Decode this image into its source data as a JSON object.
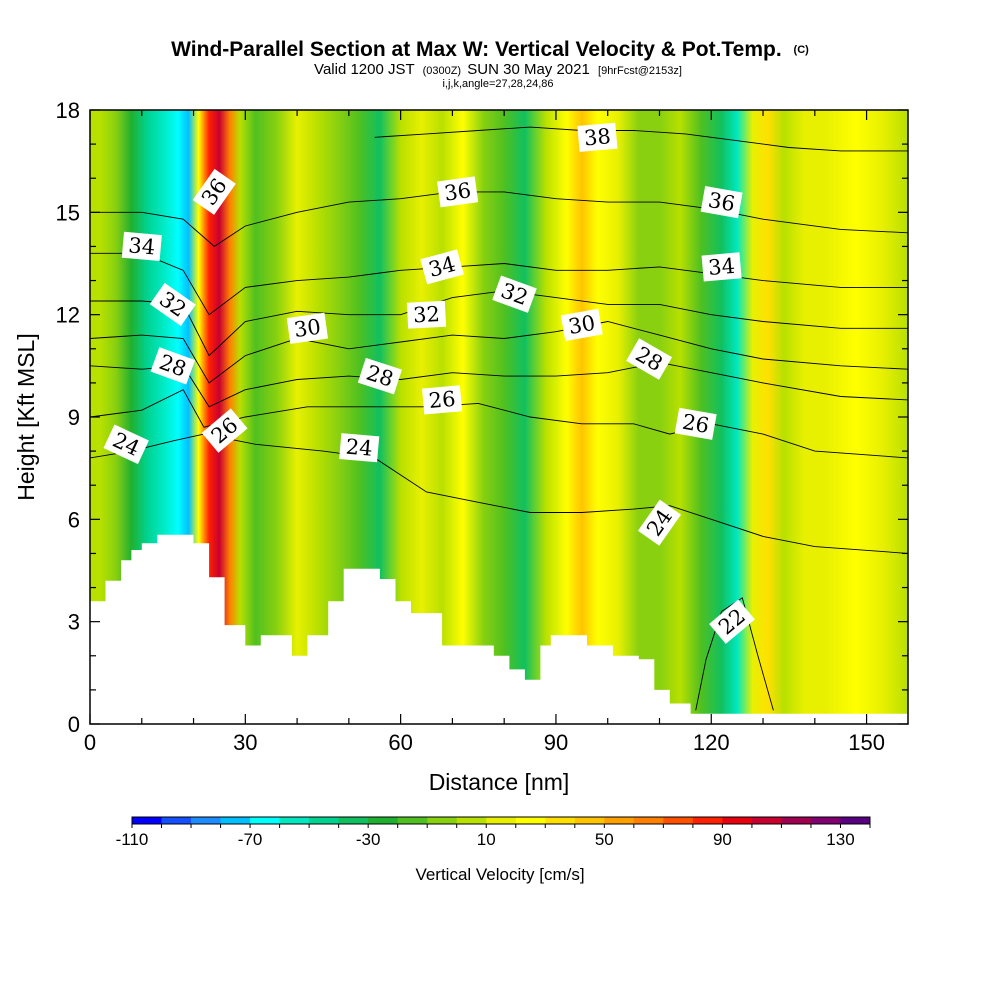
{
  "chart_data": {
    "type": "heatmap",
    "title": "Wind-Parallel Section at Max W: Vertical Velocity & Pot.Temp.",
    "title_mark": "(C)",
    "subtitle": {
      "a": "Valid 1200 JST",
      "b": "(0300Z)",
      "c": "SUN 30 May 2021",
      "d": "[9hrFcst@2153z]"
    },
    "subtitle2": "i,j,k,angle=27,28,24,86",
    "xlabel": "Distance [nm]",
    "ylabel": "Height [Kft MSL]",
    "xlim": [
      0,
      158
    ],
    "ylim": [
      0,
      18
    ],
    "xticks": [
      "0",
      "30",
      "60",
      "90",
      "120",
      "150"
    ],
    "yticks": [
      "0",
      "3",
      "6",
      "9",
      "12",
      "15",
      "18"
    ],
    "colorbar": {
      "label": "Vertical Velocity [cm/s]",
      "range": [
        -110,
        140
      ],
      "step": 10,
      "tick_labels": [
        "-110",
        "-70",
        "-30",
        "10",
        "50",
        "90",
        "130"
      ],
      "colors": [
        "#0000ff",
        "#1450ff",
        "#1e8cff",
        "#00bfff",
        "#00ffff",
        "#00e8c0",
        "#00d290",
        "#10c060",
        "#20b030",
        "#50c020",
        "#88d010",
        "#b8e000",
        "#e8f000",
        "#ffff00",
        "#ffe000",
        "#ffc400",
        "#ffa000",
        "#ff8000",
        "#ff5000",
        "#ff2000",
        "#e80010",
        "#c80030",
        "#a00050",
        "#800070",
        "#58007f"
      ]
    },
    "velocity_bands": [
      {
        "x": 0,
        "w": 0
      },
      {
        "x": 2,
        "w": 5
      },
      {
        "x": 5,
        "w": -10
      },
      {
        "x": 8,
        "w": -30
      },
      {
        "x": 11,
        "w": -45
      },
      {
        "x": 14,
        "w": -55
      },
      {
        "x": 17,
        "w": -70
      },
      {
        "x": 19,
        "w": -80
      },
      {
        "x": 21,
        "w": 20
      },
      {
        "x": 23,
        "w": 85
      },
      {
        "x": 25,
        "w": 100
      },
      {
        "x": 27,
        "w": 60
      },
      {
        "x": 29,
        "w": 5
      },
      {
        "x": 32,
        "w": -20
      },
      {
        "x": 36,
        "w": -5
      },
      {
        "x": 40,
        "w": 15
      },
      {
        "x": 44,
        "w": 0
      },
      {
        "x": 48,
        "w": -10
      },
      {
        "x": 52,
        "w": -20
      },
      {
        "x": 56,
        "w": -35
      },
      {
        "x": 60,
        "w": 0
      },
      {
        "x": 64,
        "w": 15
      },
      {
        "x": 68,
        "w": 5
      },
      {
        "x": 72,
        "w": 25
      },
      {
        "x": 76,
        "w": -5
      },
      {
        "x": 80,
        "w": -15
      },
      {
        "x": 84,
        "w": -40
      },
      {
        "x": 88,
        "w": 0
      },
      {
        "x": 92,
        "w": 20
      },
      {
        "x": 95,
        "w": 40
      },
      {
        "x": 98,
        "w": 25
      },
      {
        "x": 102,
        "w": 15
      },
      {
        "x": 106,
        "w": -5
      },
      {
        "x": 110,
        "w": -10
      },
      {
        "x": 114,
        "w": 0
      },
      {
        "x": 118,
        "w": -15
      },
      {
        "x": 122,
        "w": -40
      },
      {
        "x": 125,
        "w": -60
      },
      {
        "x": 128,
        "w": 10
      },
      {
        "x": 131,
        "w": 30
      },
      {
        "x": 134,
        "w": 5
      },
      {
        "x": 138,
        "w": 10
      },
      {
        "x": 142,
        "w": 15
      },
      {
        "x": 148,
        "w": 20
      },
      {
        "x": 153,
        "w": 10
      },
      {
        "x": 158,
        "w": 5
      }
    ],
    "terrain": [
      [
        0,
        3.6
      ],
      [
        3,
        4.2
      ],
      [
        6,
        4.8
      ],
      [
        8,
        5.1
      ],
      [
        10,
        5.3
      ],
      [
        13,
        5.55
      ],
      [
        20,
        5.3
      ],
      [
        23,
        4.3
      ],
      [
        26,
        2.9
      ],
      [
        30,
        2.3
      ],
      [
        33,
        2.6
      ],
      [
        39,
        2.0
      ],
      [
        42,
        2.6
      ],
      [
        46,
        3.6
      ],
      [
        49,
        4.55
      ],
      [
        56,
        4.25
      ],
      [
        59,
        3.6
      ],
      [
        62,
        3.25
      ],
      [
        68,
        2.3
      ],
      [
        78,
        2.0
      ],
      [
        81,
        1.6
      ],
      [
        84,
        1.3
      ],
      [
        87,
        2.3
      ],
      [
        89,
        2.6
      ],
      [
        96,
        2.3
      ],
      [
        101,
        2.0
      ],
      [
        106,
        1.9
      ],
      [
        109,
        1.0
      ],
      [
        112,
        0.6
      ],
      [
        116,
        0.3
      ],
      [
        122,
        0.3
      ],
      [
        158,
        0.3
      ]
    ],
    "isentropes": [
      {
        "value": 22,
        "points": [
          [
            117,
            0.4
          ],
          [
            119,
            1.9
          ],
          [
            122,
            3.3
          ],
          [
            126,
            3.7
          ],
          [
            129,
            2.0
          ],
          [
            132,
            0.4
          ]
        ]
      },
      {
        "value": 24,
        "points": [
          [
            0,
            7.8
          ],
          [
            8,
            8.0
          ],
          [
            16,
            8.3
          ],
          [
            22,
            8.5
          ],
          [
            32,
            8.2
          ],
          [
            45,
            8.0
          ],
          [
            55,
            7.8
          ],
          [
            65,
            6.8
          ],
          [
            75,
            6.5
          ],
          [
            85,
            6.2
          ],
          [
            95,
            6.2
          ],
          [
            105,
            6.3
          ],
          [
            112,
            6.4
          ],
          [
            120,
            6.0
          ],
          [
            130,
            5.5
          ],
          [
            140,
            5.2
          ],
          [
            158,
            5.0
          ]
        ]
      },
      {
        "value": 26,
        "points": [
          [
            0,
            9.0
          ],
          [
            10,
            9.2
          ],
          [
            18,
            9.8
          ],
          [
            22,
            8.7
          ],
          [
            30,
            9.0
          ],
          [
            42,
            9.3
          ],
          [
            55,
            9.3
          ],
          [
            65,
            9.3
          ],
          [
            75,
            9.4
          ],
          [
            85,
            9.0
          ],
          [
            95,
            8.8
          ],
          [
            105,
            8.8
          ],
          [
            112,
            8.5
          ],
          [
            120,
            8.8
          ],
          [
            130,
            8.5
          ],
          [
            140,
            8.0
          ],
          [
            158,
            7.8
          ]
        ]
      },
      {
        "value": 28,
        "points": [
          [
            0,
            10.5
          ],
          [
            10,
            10.4
          ],
          [
            18,
            10.5
          ],
          [
            23,
            9.3
          ],
          [
            30,
            9.8
          ],
          [
            40,
            10.1
          ],
          [
            50,
            10.2
          ],
          [
            60,
            10.1
          ],
          [
            70,
            10.3
          ],
          [
            80,
            10.2
          ],
          [
            90,
            10.2
          ],
          [
            100,
            10.3
          ],
          [
            110,
            10.6
          ],
          [
            120,
            10.3
          ],
          [
            130,
            10.0
          ],
          [
            145,
            9.6
          ],
          [
            158,
            9.5
          ]
        ]
      },
      {
        "value": 30,
        "points": [
          [
            0,
            11.3
          ],
          [
            10,
            11.4
          ],
          [
            18,
            11.3
          ],
          [
            23,
            10.0
          ],
          [
            30,
            10.8
          ],
          [
            40,
            11.3
          ],
          [
            50,
            11.0
          ],
          [
            60,
            11.2
          ],
          [
            70,
            11.4
          ],
          [
            80,
            11.3
          ],
          [
            90,
            11.5
          ],
          [
            100,
            11.8
          ],
          [
            110,
            11.4
          ],
          [
            120,
            11.0
          ],
          [
            130,
            10.7
          ],
          [
            145,
            10.5
          ],
          [
            158,
            10.4
          ]
        ]
      },
      {
        "value": 32,
        "points": [
          [
            0,
            12.4
          ],
          [
            10,
            12.4
          ],
          [
            18,
            12.3
          ],
          [
            23,
            10.8
          ],
          [
            30,
            11.8
          ],
          [
            40,
            12.1
          ],
          [
            50,
            12.0
          ],
          [
            60,
            12.0
          ],
          [
            70,
            12.5
          ],
          [
            80,
            12.7
          ],
          [
            90,
            12.5
          ],
          [
            100,
            12.3
          ],
          [
            110,
            12.3
          ],
          [
            120,
            12.0
          ],
          [
            130,
            11.8
          ],
          [
            145,
            11.6
          ],
          [
            158,
            11.6
          ]
        ]
      },
      {
        "value": 34,
        "points": [
          [
            0,
            13.8
          ],
          [
            10,
            13.8
          ],
          [
            18,
            13.3
          ],
          [
            23,
            12.0
          ],
          [
            30,
            12.8
          ],
          [
            40,
            13.0
          ],
          [
            50,
            13.1
          ],
          [
            60,
            13.3
          ],
          [
            70,
            13.4
          ],
          [
            80,
            13.5
          ],
          [
            90,
            13.3
          ],
          [
            100,
            13.3
          ],
          [
            110,
            13.4
          ],
          [
            120,
            13.2
          ],
          [
            130,
            13.0
          ],
          [
            145,
            12.8
          ],
          [
            158,
            12.8
          ]
        ]
      },
      {
        "value": 36,
        "points": [
          [
            0,
            15.0
          ],
          [
            10,
            15.0
          ],
          [
            18,
            14.8
          ],
          [
            24,
            14.0
          ],
          [
            30,
            14.6
          ],
          [
            40,
            15.0
          ],
          [
            50,
            15.3
          ],
          [
            60,
            15.4
          ],
          [
            70,
            15.6
          ],
          [
            80,
            15.6
          ],
          [
            90,
            15.4
          ],
          [
            100,
            15.3
          ],
          [
            110,
            15.3
          ],
          [
            120,
            15.1
          ],
          [
            130,
            14.8
          ],
          [
            145,
            14.5
          ],
          [
            158,
            14.4
          ]
        ]
      },
      {
        "value": 38,
        "points": [
          [
            55,
            17.2
          ],
          [
            65,
            17.3
          ],
          [
            75,
            17.4
          ],
          [
            85,
            17.5
          ],
          [
            95,
            17.4
          ],
          [
            105,
            17.4
          ],
          [
            115,
            17.3
          ],
          [
            125,
            17.1
          ],
          [
            135,
            16.9
          ],
          [
            145,
            16.8
          ],
          [
            158,
            16.8
          ]
        ]
      }
    ],
    "contour_labels": [
      {
        "text": "38",
        "x": 98,
        "y": 17.2,
        "rot": -5
      },
      {
        "text": "36",
        "x": 24,
        "y": 15.6,
        "rot": -55
      },
      {
        "text": "36",
        "x": 71,
        "y": 15.6,
        "rot": -8
      },
      {
        "text": "36",
        "x": 122,
        "y": 15.3,
        "rot": 10
      },
      {
        "text": "34",
        "x": 10,
        "y": 14.0,
        "rot": 5
      },
      {
        "text": "34",
        "x": 68,
        "y": 13.4,
        "rot": -15
      },
      {
        "text": "34",
        "x": 122,
        "y": 13.4,
        "rot": -5
      },
      {
        "text": "32",
        "x": 16,
        "y": 12.3,
        "rot": 35
      },
      {
        "text": "32",
        "x": 65,
        "y": 12.0,
        "rot": -3
      },
      {
        "text": "32",
        "x": 82,
        "y": 12.6,
        "rot": 20
      },
      {
        "text": "30",
        "x": 42,
        "y": 11.6,
        "rot": -8
      },
      {
        "text": "30",
        "x": 95,
        "y": 11.7,
        "rot": -10
      },
      {
        "text": "28",
        "x": 16,
        "y": 10.5,
        "rot": 20
      },
      {
        "text": "28",
        "x": 56,
        "y": 10.2,
        "rot": 18
      },
      {
        "text": "28",
        "x": 108,
        "y": 10.7,
        "rot": 30
      },
      {
        "text": "26",
        "x": 26,
        "y": 8.6,
        "rot": -40
      },
      {
        "text": "26",
        "x": 68,
        "y": 9.5,
        "rot": -5
      },
      {
        "text": "26",
        "x": 117,
        "y": 8.8,
        "rot": 10
      },
      {
        "text": "24",
        "x": 7,
        "y": 8.2,
        "rot": 25
      },
      {
        "text": "24",
        "x": 52,
        "y": 8.1,
        "rot": 5
      },
      {
        "text": "24",
        "x": 110,
        "y": 5.9,
        "rot": -55
      },
      {
        "text": "22",
        "x": 124,
        "y": 3.0,
        "rot": -40
      }
    ]
  }
}
